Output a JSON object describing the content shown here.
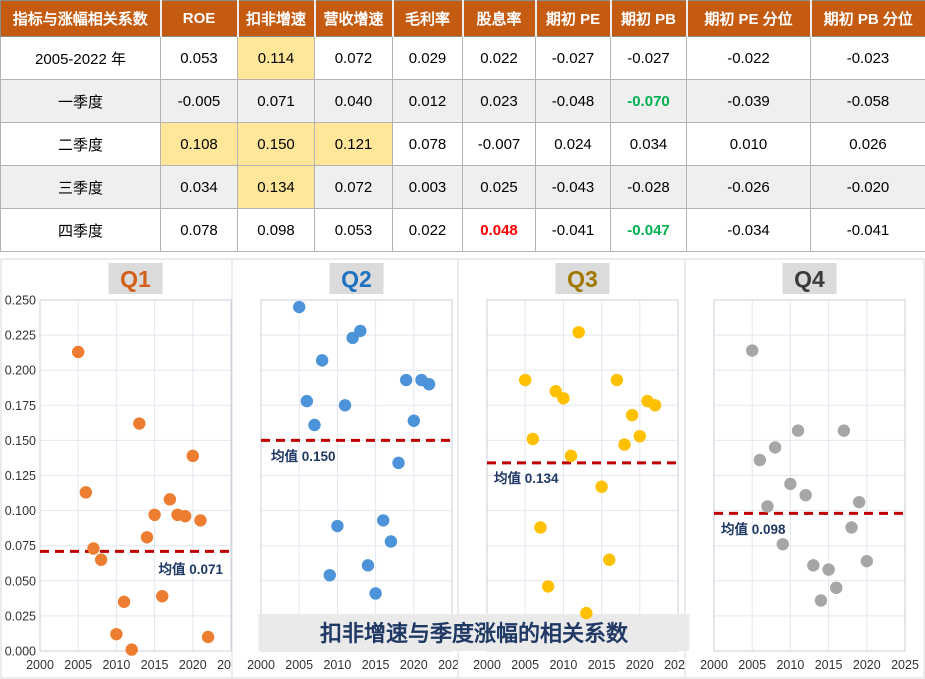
{
  "table": {
    "headers": [
      "指标与涨幅相关系数",
      "ROE",
      "扣非增速",
      "营收增速",
      "毛利率",
      "股息率",
      "期初 PE",
      "期初 PB",
      "期初 PE 分位",
      "期初 PB 分位"
    ],
    "rows": [
      {
        "label": "2005-2022 年",
        "values": [
          "0.053",
          "0.114",
          "0.072",
          "0.029",
          "0.022",
          "-0.027",
          "-0.027",
          "-0.022",
          "-0.023"
        ],
        "styles": {
          "1": "hl"
        }
      },
      {
        "label": "一季度",
        "values": [
          "-0.005",
          "0.071",
          "0.040",
          "0.012",
          "0.023",
          "-0.048",
          "-0.070",
          "-0.039",
          "-0.058"
        ],
        "styles": {
          "6": "green"
        }
      },
      {
        "label": "二季度",
        "values": [
          "0.108",
          "0.150",
          "0.121",
          "0.078",
          "-0.007",
          "0.024",
          "0.034",
          "0.010",
          "0.026"
        ],
        "styles": {
          "0": "hl",
          "1": "hl",
          "2": "hl"
        }
      },
      {
        "label": "三季度",
        "values": [
          "0.034",
          "0.134",
          "0.072",
          "0.003",
          "0.025",
          "-0.043",
          "-0.028",
          "-0.026",
          "-0.020"
        ],
        "styles": {
          "1": "hl"
        }
      },
      {
        "label": "四季度",
        "values": [
          "0.078",
          "0.098",
          "0.053",
          "0.022",
          "0.048",
          "-0.041",
          "-0.047",
          "-0.034",
          "-0.041"
        ],
        "styles": {
          "4": "red",
          "6": "green"
        }
      }
    ]
  },
  "banner": {
    "text": "扣非增速与季度涨幅的相关系数"
  },
  "chart_data": {
    "type": "scatter",
    "x_range": [
      2000,
      2025
    ],
    "x_ticks": [
      2000,
      2005,
      2010,
      2015,
      2020,
      2025
    ],
    "y_range": [
      0,
      0.25
    ],
    "y_tick_step": 0.025,
    "grid": true,
    "mean_line_color": "#C00000",
    "mean_label_color": "#1F3864",
    "charts": [
      {
        "title": "Q1",
        "title_color": "#D2601A",
        "point_color": "#ED7D31",
        "mean": 0.071,
        "mean_label": "均值 0.071",
        "points": [
          [
            2005,
            0.213
          ],
          [
            2006,
            0.113
          ],
          [
            2007,
            0.073
          ],
          [
            2008,
            0.065
          ],
          [
            2010,
            0.012
          ],
          [
            2011,
            0.035
          ],
          [
            2012,
            0.001
          ],
          [
            2013,
            0.162
          ],
          [
            2014,
            0.081
          ],
          [
            2015,
            0.097
          ],
          [
            2016,
            0.039
          ],
          [
            2017,
            0.108
          ],
          [
            2018,
            0.097
          ],
          [
            2019,
            0.096
          ],
          [
            2020,
            0.139
          ],
          [
            2021,
            0.093
          ],
          [
            2022,
            0.01
          ]
        ]
      },
      {
        "title": "Q2",
        "title_color": "#1F72C1",
        "point_color": "#4D93D9",
        "mean": 0.15,
        "mean_label": "均值 0.150",
        "points": [
          [
            2005,
            0.245
          ],
          [
            2006,
            0.178
          ],
          [
            2007,
            0.161
          ],
          [
            2008,
            0.207
          ],
          [
            2009,
            0.054
          ],
          [
            2010,
            0.089
          ],
          [
            2011,
            0.175
          ],
          [
            2012,
            0.223
          ],
          [
            2013,
            0.228
          ],
          [
            2014,
            0.061
          ],
          [
            2015,
            0.041
          ],
          [
            2016,
            0.093
          ],
          [
            2017,
            0.078
          ],
          [
            2018,
            0.134
          ],
          [
            2019,
            0.193
          ],
          [
            2020,
            0.164
          ],
          [
            2021,
            0.193
          ],
          [
            2022,
            0.19
          ]
        ]
      },
      {
        "title": "Q3",
        "title_color": "#A07800",
        "point_color": "#FFC000",
        "mean": 0.134,
        "mean_label": "均值 0.134",
        "points": [
          [
            2005,
            0.193
          ],
          [
            2006,
            0.151
          ],
          [
            2007,
            0.088
          ],
          [
            2008,
            0.046
          ],
          [
            2009,
            0.185
          ],
          [
            2010,
            0.18
          ],
          [
            2011,
            0.139
          ],
          [
            2012,
            0.227
          ],
          [
            2013,
            0.027
          ],
          [
            2015,
            0.117
          ],
          [
            2016,
            0.065
          ],
          [
            2017,
            0.193
          ],
          [
            2018,
            0.147
          ],
          [
            2019,
            0.168
          ],
          [
            2020,
            0.153
          ],
          [
            2021,
            0.178
          ],
          [
            2022,
            0.175
          ]
        ]
      },
      {
        "title": "Q4",
        "title_color": "#3B3B3B",
        "point_color": "#A6A6A6",
        "mean": 0.098,
        "mean_label": "均值 0.098",
        "points": [
          [
            2005,
            0.214
          ],
          [
            2006,
            0.136
          ],
          [
            2007,
            0.103
          ],
          [
            2008,
            0.145
          ],
          [
            2009,
            0.076
          ],
          [
            2010,
            0.119
          ],
          [
            2011,
            0.157
          ],
          [
            2012,
            0.111
          ],
          [
            2013,
            0.061
          ],
          [
            2014,
            0.036
          ],
          [
            2015,
            0.058
          ],
          [
            2016,
            0.045
          ],
          [
            2017,
            0.157
          ],
          [
            2018,
            0.088
          ],
          [
            2019,
            0.106
          ],
          [
            2020,
            0.064
          ]
        ]
      }
    ]
  },
  "colors": {
    "header_bg": "#C55A11",
    "highlight": "#FFE699",
    "positive_red": "#FF0000",
    "negative_green": "#00B050",
    "banner_text": "#1F3864"
  }
}
